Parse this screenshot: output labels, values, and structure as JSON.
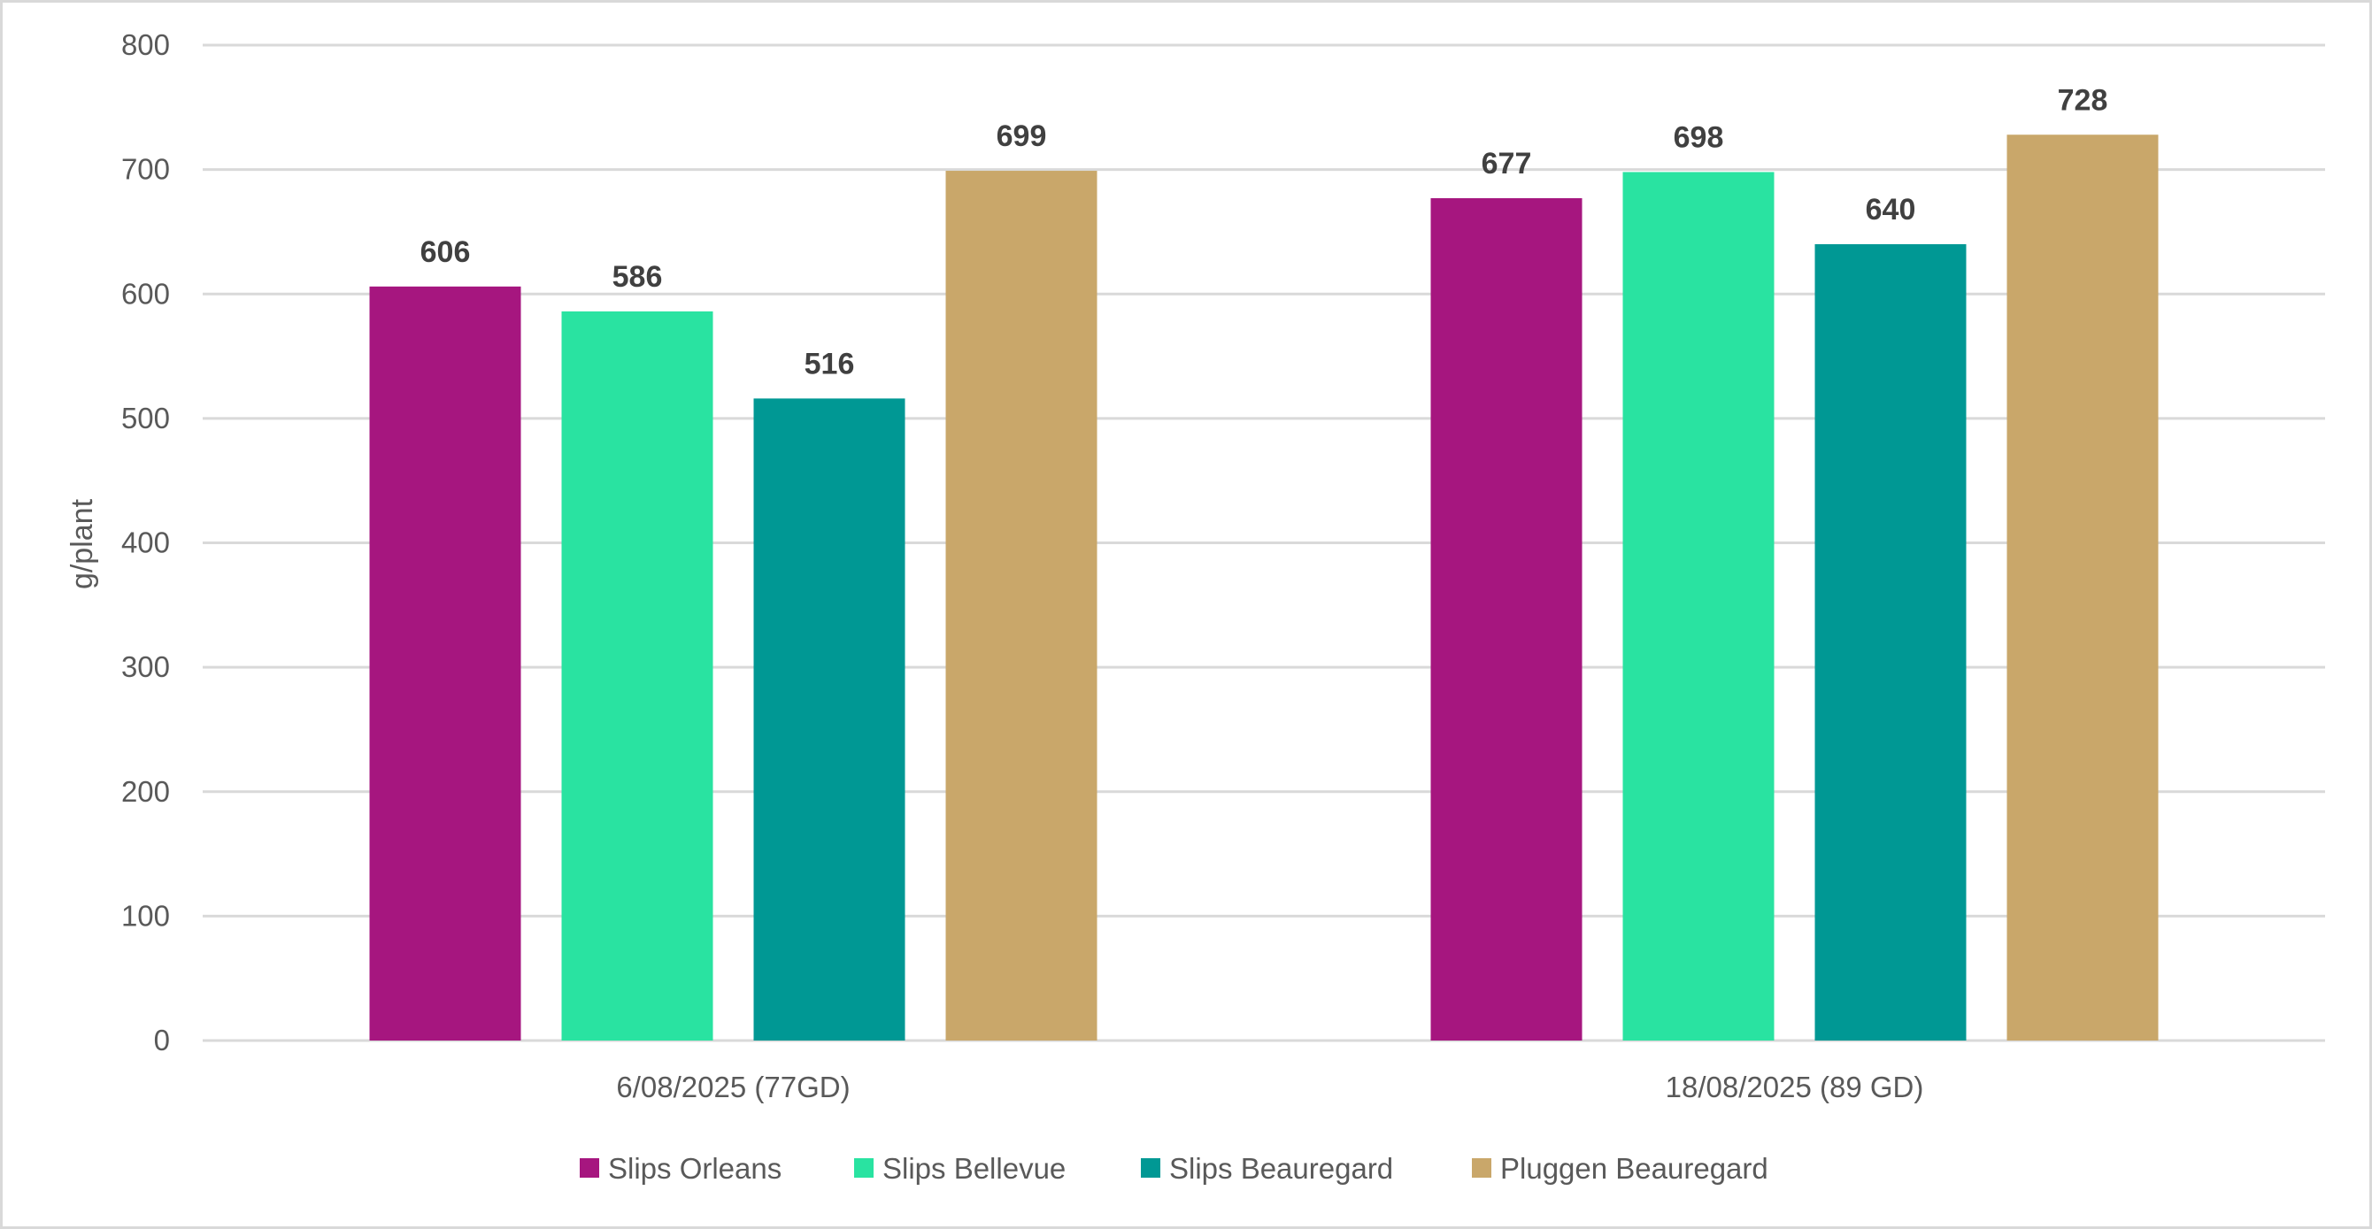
{
  "chart_data": {
    "type": "bar",
    "title": "",
    "xlabel": "",
    "ylabel": "g/plant",
    "ylim": [
      0,
      800
    ],
    "yticks": [
      0,
      100,
      200,
      300,
      400,
      500,
      600,
      700,
      800
    ],
    "grid": true,
    "legend_position": "bottom",
    "categories": [
      "6/08/2025 (77GD)",
      "18/08/2025 (89 GD)"
    ],
    "series": [
      {
        "name": "Slips Orleans",
        "color": "#A6167F",
        "values": [
          606,
          677
        ]
      },
      {
        "name": "Slips Bellevue",
        "color": "#29E3A1",
        "values": [
          586,
          698
        ]
      },
      {
        "name": "Slips Beauregard",
        "color": "#009894",
        "values": [
          516,
          640
        ]
      },
      {
        "name": "Pluggen Beauregard",
        "color": "#C9A76A",
        "values": [
          699,
          728
        ]
      }
    ]
  }
}
